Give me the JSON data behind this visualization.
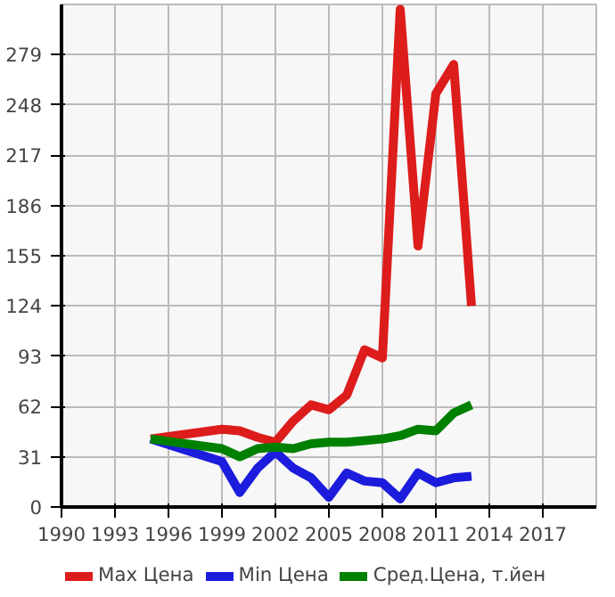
{
  "chart_data": {
    "type": "line",
    "x": [
      1995,
      1999,
      2000,
      2001,
      2002,
      2003,
      2004,
      2005,
      2006,
      2007,
      2008,
      2009,
      2010,
      2011,
      2012,
      2013
    ],
    "series": [
      {
        "name": "Max Цена",
        "color": "#dd1c1c",
        "values": [
          42,
          48,
          47,
          43,
          40,
          53,
          63,
          60,
          69,
          97,
          92,
          307,
          161,
          255,
          273,
          124
        ]
      },
      {
        "name": "Min Цена",
        "color": "#1c1cdd",
        "values": [
          42,
          28,
          9,
          24,
          34,
          24,
          18,
          6,
          21,
          16,
          15,
          5,
          21,
          15,
          18,
          19
        ]
      },
      {
        "name": "Сред.Цена, т.йен",
        "color": "#008000",
        "values": [
          42,
          36,
          31,
          36,
          37,
          36,
          39,
          40,
          40,
          41,
          42,
          44,
          48,
          47,
          58,
          63
        ]
      }
    ],
    "xlim": [
      1990,
      2020
    ],
    "xticks": [
      1990,
      1993,
      1996,
      1999,
      2002,
      2005,
      2008,
      2011,
      2014,
      2017
    ],
    "ylim": [
      0,
      310
    ],
    "yticks": [
      0,
      31,
      62,
      93,
      124,
      155,
      186,
      217,
      248,
      279
    ],
    "grid": true,
    "legend": "bottom",
    "marker": "none",
    "line_style": "solid"
  }
}
